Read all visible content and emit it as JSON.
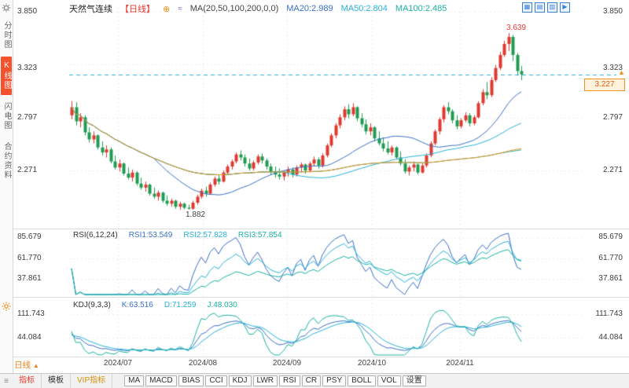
{
  "colors": {
    "up": "#e0392f",
    "down": "#1f9c52",
    "ma20": "#3a6fc4",
    "ma50": "#29b0d8",
    "ma100": "#18b2a0",
    "ma200": "#f0911e",
    "line1": "#3a6fc4",
    "line2": "#29b0d8",
    "line3": "#18b2a0",
    "last_price_line": "#29b0d8",
    "tag_red": "#e8382f",
    "accent_orange": "#f0911e",
    "vip_gold": "#d4920a"
  },
  "icons": {
    "plus": "⊕",
    "wave": "≈",
    "layout": [
      "▦",
      "▤",
      "▥",
      "▶"
    ],
    "up_triangle": "▲",
    "menu": "≡"
  },
  "sidebar": {
    "items": [
      {
        "label": "分时图"
      },
      {
        "label": "K线图"
      },
      {
        "label": "闪电图"
      },
      {
        "label": "合约资料"
      }
    ]
  },
  "header": {
    "symbol": "天然气连续",
    "period_tag": "【日线】",
    "ma_settings": "MA(20,50,100,200,0,0)",
    "ma20": "MA20:2.989",
    "ma50": "MA50:2.804",
    "ma100": "MA100:2.485"
  },
  "axis": {
    "price": [
      "3.850",
      "3.323",
      "2.797",
      "2.271"
    ],
    "rsi": [
      "85.679",
      "61.770",
      "37.861"
    ],
    "kdj": [
      "111.743",
      "44.084"
    ]
  },
  "annotations": {
    "high": "3.639",
    "low": "1.882",
    "last_price": "3.227"
  },
  "rsi_header": {
    "title": "RSI(6,12,24)",
    "rsi1": "RSI1:53.549",
    "rsi2": "RSI2:57.828",
    "rsi3": "RSI3:57.854"
  },
  "kdj_header": {
    "title": "KDJ(9,3,3)",
    "k": "K:63.516",
    "d": "D:71.259",
    "j": "J:48.030"
  },
  "timeline": {
    "period": "日线",
    "months": [
      "2024/07",
      "2024/08",
      "2024/09",
      "2024/10",
      "2024/11"
    ]
  },
  "toolbar": {
    "tabs": [
      "指标",
      "模板",
      "VIP指标"
    ],
    "indicators": [
      "MA",
      "MACD",
      "BIAS",
      "CCI",
      "KDJ",
      "LWR",
      "RSI",
      "CR",
      "PSY",
      "BOLL",
      "VOL"
    ],
    "settings": "设置"
  },
  "chart_data": {
    "type": "candlestick",
    "symbol": "天然气连续",
    "period": "日线",
    "months": [
      "2024/07",
      "2024/08",
      "2024/09",
      "2024/10",
      "2024/11"
    ],
    "price_axis_values": [
      3.85,
      3.323,
      2.797,
      2.271
    ],
    "rsi_axis_values": [
      85.679,
      61.77,
      37.861
    ],
    "kdj_axis_values": [
      111.743,
      44.084
    ],
    "ma_periods": [
      20,
      50,
      100,
      200
    ],
    "rsi_periods": [
      6,
      12,
      24
    ],
    "kdj_params": [
      9,
      3,
      3
    ],
    "last_price": 3.227,
    "high": 3.639,
    "low": 1.882,
    "candles": [
      [
        2.82,
        2.96,
        2.78,
        2.9
      ],
      [
        2.9,
        2.95,
        2.72,
        2.76
      ],
      [
        2.76,
        2.84,
        2.7,
        2.8
      ],
      [
        2.8,
        2.82,
        2.62,
        2.65
      ],
      [
        2.65,
        2.7,
        2.55,
        2.58
      ],
      [
        2.58,
        2.66,
        2.54,
        2.62
      ],
      [
        2.62,
        2.63,
        2.48,
        2.5
      ],
      [
        2.5,
        2.56,
        2.42,
        2.45
      ],
      [
        2.45,
        2.52,
        2.4,
        2.48
      ],
      [
        2.48,
        2.5,
        2.34,
        2.36
      ],
      [
        2.36,
        2.42,
        2.28,
        2.3
      ],
      [
        2.3,
        2.38,
        2.26,
        2.34
      ],
      [
        2.34,
        2.35,
        2.22,
        2.24
      ],
      [
        2.24,
        2.3,
        2.18,
        2.2
      ],
      [
        2.2,
        2.28,
        2.16,
        2.25
      ],
      [
        2.25,
        2.26,
        2.12,
        2.14
      ],
      [
        2.14,
        2.2,
        2.08,
        2.1
      ],
      [
        2.1,
        2.16,
        2.06,
        2.13
      ],
      [
        2.13,
        2.14,
        2.02,
        2.04
      ],
      [
        2.04,
        2.1,
        1.99,
        2.01
      ],
      [
        2.01,
        2.07,
        1.97,
        2.05
      ],
      [
        2.05,
        2.06,
        1.95,
        1.97
      ],
      [
        1.97,
        2.02,
        1.92,
        1.94
      ],
      [
        1.94,
        1.99,
        1.91,
        1.97
      ],
      [
        1.97,
        1.98,
        1.89,
        1.91
      ],
      [
        1.91,
        1.96,
        1.88,
        1.94
      ],
      [
        1.94,
        1.95,
        1.885,
        1.9
      ],
      [
        1.9,
        1.93,
        1.882,
        1.89
      ],
      [
        1.89,
        1.97,
        1.88,
        1.95
      ],
      [
        1.95,
        2.03,
        1.93,
        2.01
      ],
      [
        2.01,
        2.09,
        1.99,
        2.07
      ],
      [
        2.07,
        2.11,
        2.01,
        2.04
      ],
      [
        2.04,
        2.15,
        2.03,
        2.13
      ],
      [
        2.13,
        2.21,
        2.11,
        2.19
      ],
      [
        2.19,
        2.23,
        2.13,
        2.16
      ],
      [
        2.16,
        2.27,
        2.15,
        2.25
      ],
      [
        2.25,
        2.33,
        2.23,
        2.31
      ],
      [
        2.31,
        2.38,
        2.28,
        2.36
      ],
      [
        2.36,
        2.45,
        2.34,
        2.43
      ],
      [
        2.43,
        2.47,
        2.37,
        2.4
      ],
      [
        2.4,
        2.43,
        2.31,
        2.34
      ],
      [
        2.34,
        2.39,
        2.27,
        2.29
      ],
      [
        2.29,
        2.37,
        2.27,
        2.35
      ],
      [
        2.35,
        2.43,
        2.33,
        2.41
      ],
      [
        2.41,
        2.44,
        2.34,
        2.37
      ],
      [
        2.37,
        2.39,
        2.28,
        2.31
      ],
      [
        2.31,
        2.34,
        2.23,
        2.26
      ],
      [
        2.26,
        2.31,
        2.2,
        2.23
      ],
      [
        2.23,
        2.29,
        2.18,
        2.21
      ],
      [
        2.21,
        2.27,
        2.17,
        2.25
      ],
      [
        2.25,
        2.31,
        2.21,
        2.28
      ],
      [
        2.28,
        2.3,
        2.2,
        2.23
      ],
      [
        2.23,
        2.32,
        2.21,
        2.3
      ],
      [
        2.3,
        2.35,
        2.25,
        2.33
      ],
      [
        2.33,
        2.34,
        2.24,
        2.27
      ],
      [
        2.27,
        2.36,
        2.25,
        2.34
      ],
      [
        2.34,
        2.41,
        2.31,
        2.38
      ],
      [
        2.38,
        2.4,
        2.29,
        2.32
      ],
      [
        2.32,
        2.44,
        2.3,
        2.42
      ],
      [
        2.42,
        2.54,
        2.4,
        2.52
      ],
      [
        2.52,
        2.64,
        2.5,
        2.62
      ],
      [
        2.62,
        2.74,
        2.59,
        2.72
      ],
      [
        2.72,
        2.83,
        2.69,
        2.8
      ],
      [
        2.8,
        2.91,
        2.77,
        2.88
      ],
      [
        2.88,
        2.93,
        2.79,
        2.83
      ],
      [
        2.83,
        2.94,
        2.81,
        2.9
      ],
      [
        2.9,
        2.91,
        2.76,
        2.79
      ],
      [
        2.79,
        2.84,
        2.7,
        2.73
      ],
      [
        2.73,
        2.78,
        2.63,
        2.66
      ],
      [
        2.66,
        2.74,
        2.62,
        2.7
      ],
      [
        2.7,
        2.71,
        2.56,
        2.59
      ],
      [
        2.59,
        2.66,
        2.52,
        2.54
      ],
      [
        2.54,
        2.6,
        2.46,
        2.49
      ],
      [
        2.49,
        2.56,
        2.43,
        2.45
      ],
      [
        2.45,
        2.52,
        2.42,
        2.5
      ],
      [
        2.5,
        2.51,
        2.38,
        2.4
      ],
      [
        2.4,
        2.46,
        2.32,
        2.34
      ],
      [
        2.34,
        2.38,
        2.24,
        2.26
      ],
      [
        2.26,
        2.32,
        2.22,
        2.3
      ],
      [
        2.3,
        2.36,
        2.26,
        2.33
      ],
      [
        2.33,
        2.34,
        2.23,
        2.25
      ],
      [
        2.25,
        2.34,
        2.24,
        2.32
      ],
      [
        2.32,
        2.44,
        2.3,
        2.42
      ],
      [
        2.42,
        2.56,
        2.4,
        2.54
      ],
      [
        2.54,
        2.68,
        2.52,
        2.66
      ],
      [
        2.66,
        2.8,
        2.63,
        2.78
      ],
      [
        2.78,
        2.92,
        2.75,
        2.9
      ],
      [
        2.9,
        2.95,
        2.83,
        2.86
      ],
      [
        2.86,
        2.88,
        2.74,
        2.77
      ],
      [
        2.77,
        2.82,
        2.68,
        2.71
      ],
      [
        2.71,
        2.79,
        2.69,
        2.77
      ],
      [
        2.77,
        2.85,
        2.75,
        2.82
      ],
      [
        2.82,
        2.84,
        2.71,
        2.74
      ],
      [
        2.74,
        2.82,
        2.72,
        2.8
      ],
      [
        2.8,
        2.96,
        2.79,
        2.94
      ],
      [
        2.94,
        3.08,
        2.92,
        3.05
      ],
      [
        3.05,
        3.15,
        2.98,
        3.02
      ],
      [
        3.02,
        3.2,
        3.0,
        3.17
      ],
      [
        3.17,
        3.32,
        3.15,
        3.29
      ],
      [
        3.29,
        3.45,
        3.27,
        3.42
      ],
      [
        3.42,
        3.56,
        3.4,
        3.53
      ],
      [
        3.53,
        3.639,
        3.46,
        3.6
      ],
      [
        3.6,
        3.62,
        3.36,
        3.42
      ],
      [
        3.42,
        3.44,
        3.22,
        3.26
      ],
      [
        3.26,
        3.31,
        3.17,
        3.227
      ]
    ]
  }
}
